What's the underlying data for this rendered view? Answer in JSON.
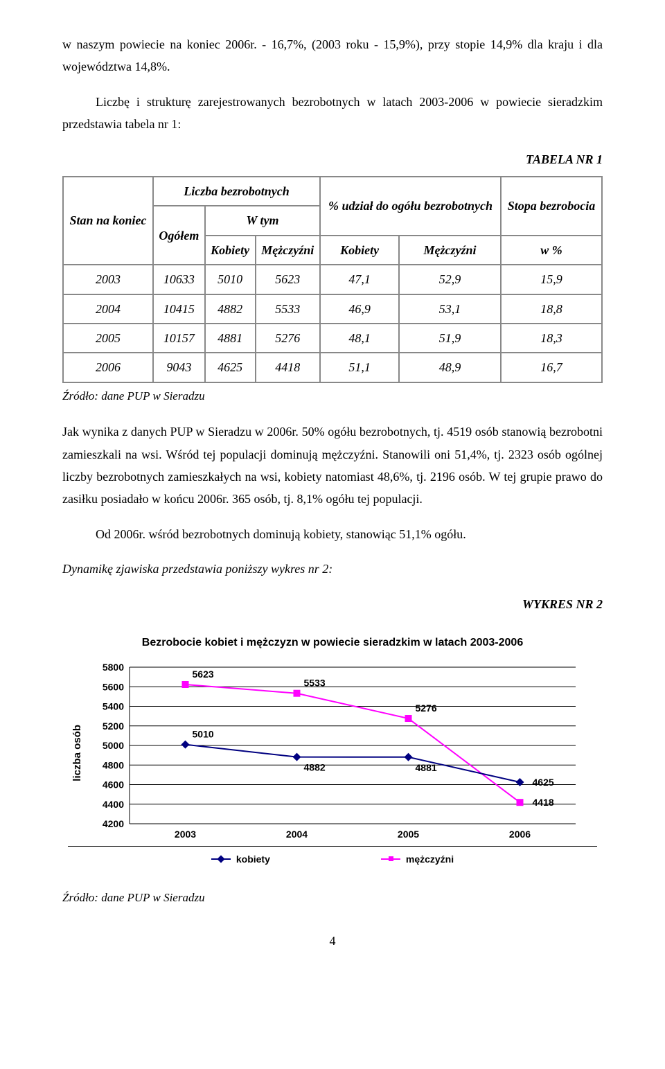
{
  "para1": "w naszym powiecie na koniec 2006r. - 16,7%, (2003 roku - 15,9%), przy stopie 14,9% dla kraju i dla województwa 14,8%.",
  "para2": "Liczbę i strukturę zarejestrowanych bezrobotnych w latach 2003-2006 w powiecie sieradzkim przedstawia tabela nr 1:",
  "table_caption": "TABELA NR 1",
  "tbl": {
    "h_stan": "Stan na koniec",
    "h_liczba": "Liczba bezrobotnych",
    "h_udzial": "% udział do ogółu bezrobotnych",
    "h_stopa": "Stopa bezrobocia",
    "h_ogolem": "Ogółem",
    "h_wtym": "W tym",
    "h_kob": "Kobiety",
    "h_mez": "Mężczyźni",
    "h_wpct": "w %",
    "rows": [
      {
        "y": "2003",
        "og": "10633",
        "k": "5010",
        "m": "5623",
        "uk": "47,1",
        "um": "52,9",
        "s": "15,9"
      },
      {
        "y": "2004",
        "og": "10415",
        "k": "4882",
        "m": "5533",
        "uk": "46,9",
        "um": "53,1",
        "s": "18,8"
      },
      {
        "y": "2005",
        "og": "10157",
        "k": "4881",
        "m": "5276",
        "uk": "48,1",
        "um": "51,9",
        "s": "18,3"
      },
      {
        "y": "2006",
        "og": "9043",
        "k": "4625",
        "m": "4418",
        "uk": "51,1",
        "um": "48,9",
        "s": "16,7"
      }
    ]
  },
  "source": "Źródło: dane PUP w Sieradzu",
  "para3": "Jak wynika z danych PUP w Sieradzu w 2006r. 50% ogółu bezrobotnych, tj. 4519 osób stanowią bezrobotni zamieszkali na wsi. Wśród tej populacji dominują mężczyźni. Stanowili oni 51,4%, tj. 2323 osób ogólnej liczby bezrobotnych zamieszkałych na wsi, kobiety natomiast 48,6%, tj. 2196 osób. W tej grupie prawo do zasiłku posiadało w końcu 2006r. 365 osób, tj. 8,1% ogółu tej populacji.",
  "para4": "Od 2006r. wśród bezrobotnych dominują kobiety, stanowiąc 51,1% ogółu.",
  "para5": "Dynamikę zjawiska przedstawia poniższy wykres nr 2:",
  "chart_caption": "WYKRES NR 2",
  "chart": {
    "title": "Bezrobocie kobiet i mężczyzn w powiecie sieradzkim w latach 2003-2006",
    "ylabel": "liczba osób",
    "ylim": [
      4200,
      5800
    ],
    "ytick_step": 200,
    "yticks": [
      "5800",
      "5600",
      "5400",
      "5200",
      "5000",
      "4800",
      "4600",
      "4400",
      "4200"
    ],
    "categories": [
      "2003",
      "2004",
      "2005",
      "2006"
    ],
    "series": {
      "kobiety": {
        "label": "kobiety",
        "color": "#000080",
        "marker": "diamond",
        "values": [
          5010,
          4882,
          4881,
          4625
        ]
      },
      "mezczyzni": {
        "label": "mężczyźni",
        "color": "#ff00ff",
        "marker": "square",
        "values": [
          5623,
          5533,
          5276,
          4418
        ]
      }
    },
    "line_width": 2,
    "grid_color": "#000000",
    "background_color": "#ffffff",
    "label_fontsize": 14,
    "label_fontweight": "bold"
  },
  "pagenum": "4"
}
